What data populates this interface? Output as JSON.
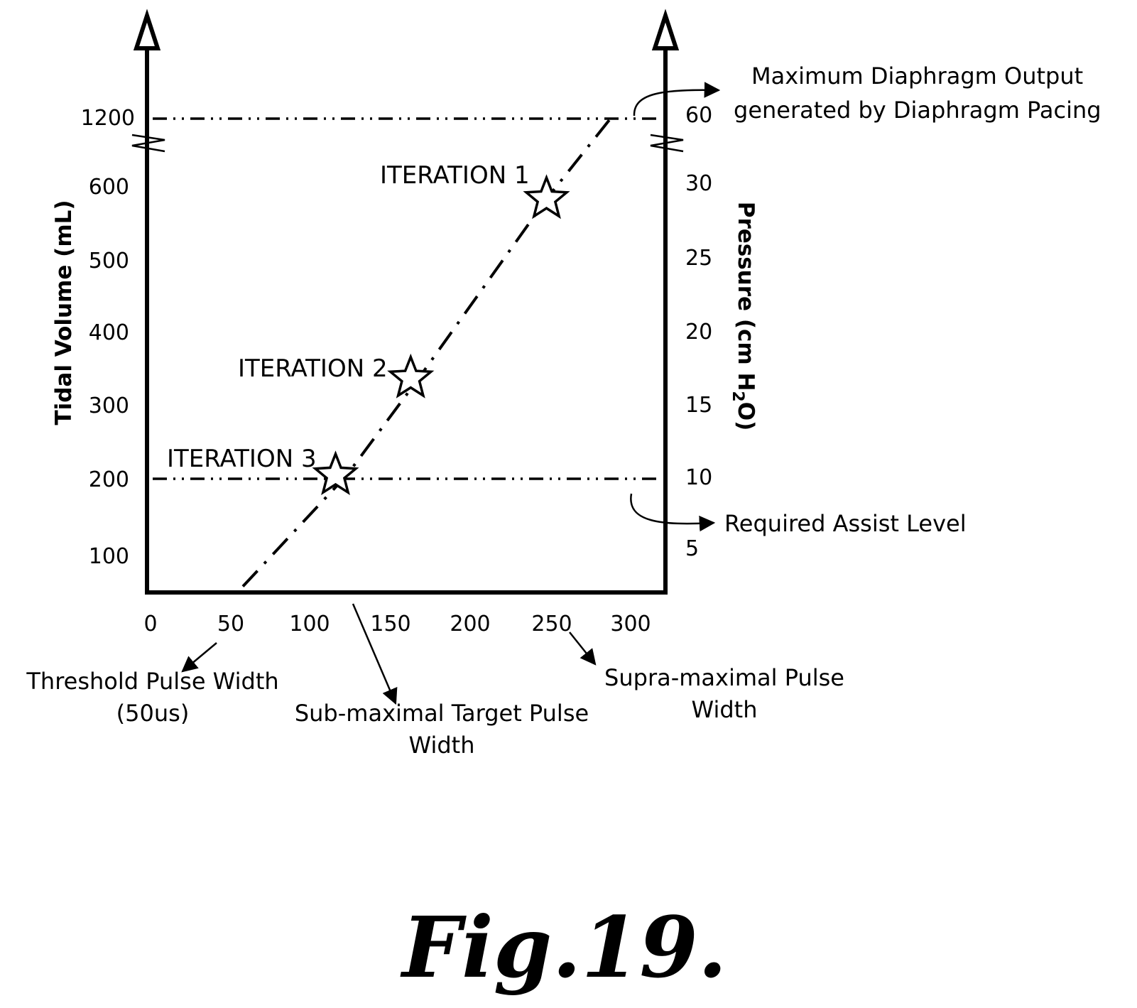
{
  "chart_data": {
    "type": "line",
    "xlabel": "",
    "ylabel": "Tidal Volume (mL)",
    "y2label_main": "Pressure (cm H",
    "y2label_sub": "2",
    "y2label_end": "O)",
    "x_ticks": [
      "0",
      "50",
      "100",
      "150",
      "200",
      "250",
      "300"
    ],
    "y_ticks": [
      "100",
      "200",
      "300",
      "400",
      "500",
      "600",
      "1200"
    ],
    "y2_ticks": [
      "5",
      "10",
      "15",
      "20",
      "25",
      "30",
      "60"
    ],
    "xlim": [
      0,
      320
    ],
    "ylim": [
      50,
      1260
    ],
    "series": [
      {
        "style": "dash-dot",
        "x": [
          60,
          125,
          170,
          250,
          290
        ],
        "y": [
          50,
          205,
          340,
          590,
          1200
        ]
      }
    ],
    "iterations": [
      {
        "label": "ITERATION 1",
        "x": 250,
        "y": 590
      },
      {
        "label": "ITERATION 2",
        "x": 165,
        "y": 340
      },
      {
        "label": "ITERATION 3",
        "x": 118,
        "y": 205
      }
    ],
    "reference_lines": [
      {
        "y": 1200,
        "style": "dash-dot"
      },
      {
        "y": 200,
        "style": "dash-dot"
      }
    ],
    "annotations": {
      "max_output_line1": "Maximum Diaphragm Output",
      "max_output_line2": "generated by Diaphragm Pacing",
      "required_assist": "Required Assist Level",
      "threshold_line1": "Threshold Pulse Width",
      "threshold_line2": "(50us)",
      "submax_line1": "Sub-maximal Target Pulse",
      "submax_line2": "Width",
      "supramax_line1": "Supra-maximal Pulse",
      "supramax_line2": "Width"
    },
    "figure_label": "Fig.19."
  }
}
